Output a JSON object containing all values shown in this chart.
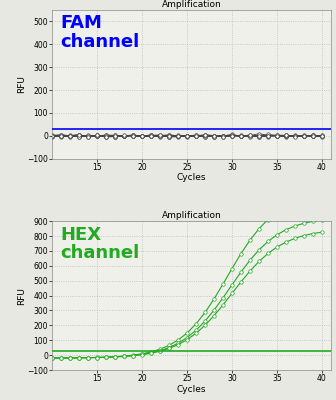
{
  "title": "Amplification",
  "xlabel": "Cycles",
  "ylabel": "RFU",
  "fam_ylim": [
    -100,
    550
  ],
  "fam_yticks": [
    -100,
    0,
    100,
    200,
    300,
    400,
    500
  ],
  "hex_ylim": [
    -100,
    900
  ],
  "hex_yticks": [
    -100,
    0,
    100,
    200,
    300,
    400,
    500,
    600,
    700,
    800,
    900
  ],
  "xlim": [
    10,
    41
  ],
  "xticks": [
    15,
    20,
    25,
    30,
    35,
    40
  ],
  "fam_label": "FAM\nchannel",
  "hex_label": "HEX\nchannel",
  "fam_color": "#0000ff",
  "hex_color": "#22aa22",
  "fam_threshold": 28,
  "hex_threshold": 28,
  "background_color": "#f0f0ea",
  "grid_color": "#bbbbbb",
  "num_curves_fam": 8,
  "num_curves_hex": 3
}
